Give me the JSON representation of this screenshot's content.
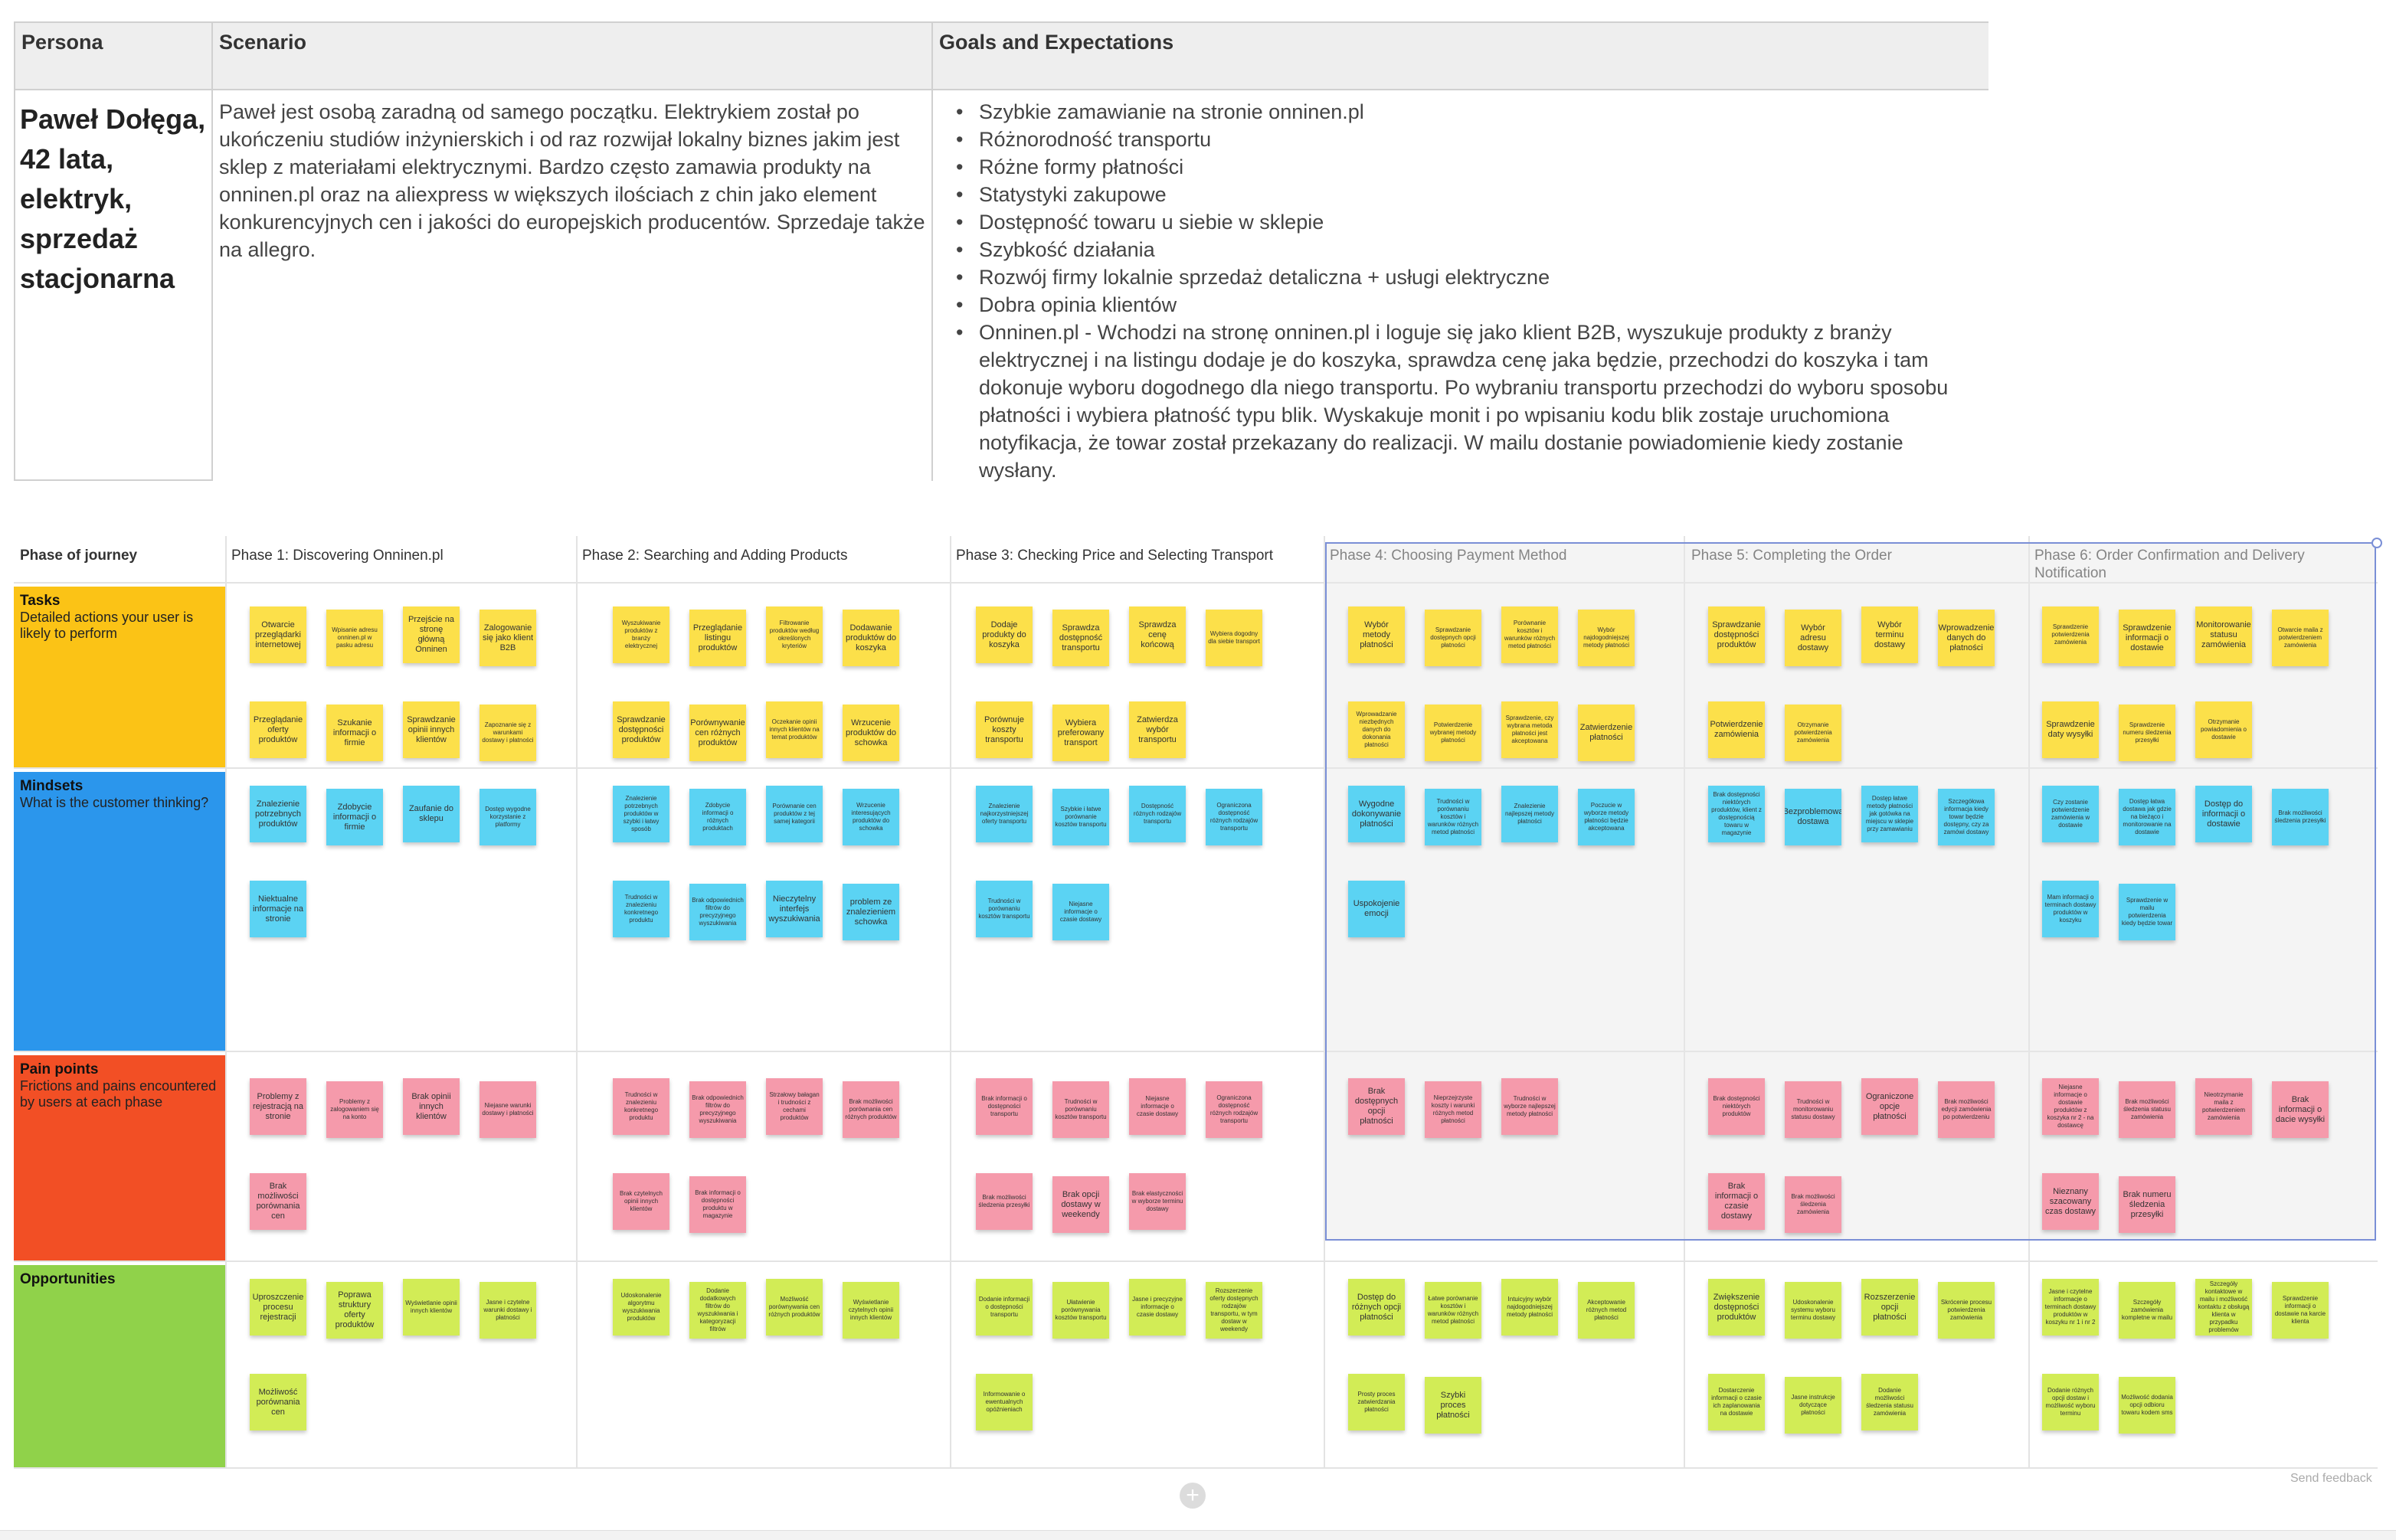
{
  "persona_table": {
    "headers": [
      "Persona",
      "Scenario",
      "Goals and Expectations"
    ],
    "persona": "Paweł Dołęga, 42 lata, elektryk, sprzedaż stacjonarna",
    "scenario": "Paweł jest osobą zaradną od samego początku. Elektrykiem został po ukończeniu studiów inżynierskich i od raz rozwijał lokalny biznes jakim jest sklep z materiałami elektrycznymi. Bardzo często zamawia produkty na onninen.pl oraz na aliexpress w większych ilościach z chin jako element konkurencyjnych cen i jakości do europejskich producentów. Sprzedaje także na allegro.",
    "goals": [
      "Szybkie zamawianie na stronie onninen.pl",
      "Różnorodność transportu",
      "Różne formy płatności",
      "Statystyki zakupowe",
      "Dostępność towaru u siebie w sklepie",
      "Szybkość działania",
      "Rozwój firmy lokalnie sprzedaż detaliczna + usługi elektryczne",
      "Dobra opinia klientów",
      "Onninen.pl - Wchodzi na stronę onninen.pl i loguje się jako klient B2B, wyszukuje produkty z branży elektrycznej i na listingu dodaje je do koszyka, sprawdza cenę jaka będzie, przechodzi do koszyka i tam dokonuje wyboru dogodnego dla niego transportu. Po wybraniu transportu przechodzi do wyboru sposobu płatności i wybiera płatność typu blik. Wyskakuje monit i po wpisaniu kodu blik zostaje uruchomiona notyfikacja, że towar został przekazany do realizacji. W mailu dostanie powiadomienie kiedy zostanie wysłany."
    ]
  },
  "journey": {
    "header_label": "Phase of journey",
    "phases": [
      "Phase 1: Discovering Onninen.pl",
      "Phase 2: Searching and Adding Products",
      "Phase 3: Checking Price and Selecting Transport",
      "Phase 4: Choosing Payment Method",
      "Phase 5: Completing the Order",
      "Phase 6: Order Confirmation and Delivery Notification"
    ],
    "rows": [
      {
        "title": "Tasks",
        "desc": "Detailed actions your user is likely to perform",
        "color": "#fbc316"
      },
      {
        "title": "Mindsets",
        "desc": "What is the customer thinking?",
        "color": "#2b96ec"
      },
      {
        "title": "Pain points",
        "desc": "Frictions and pains encountered by users at each phase",
        "color": "#f24f25"
      },
      {
        "title": "Opportunities",
        "desc": "",
        "color": "#90d24a"
      }
    ],
    "notes": {
      "tasks": [
        [
          "Otwarcie przeglądarki internetowej",
          "Wpisanie adresu onninen.pl w pasku adresu",
          "Przejście na stronę główną Onninen",
          "Zalogowanie się jako klient B2B",
          "Przeglądanie oferty produktów",
          "Szukanie informacji o firmie",
          "Sprawdzanie opinii innych klientów",
          "Zapoznanie się z warunkami dostawy i płatności"
        ],
        [
          "Wyszukiwanie produktów z branży elektrycznej",
          "Przeglądanie listingu produktów",
          "Filtrowanie produktów według określonych kryteriów",
          "Dodawanie produktów do koszyka",
          "Sprawdzanie dostępności produktów",
          "Porównywanie cen różnych produktów",
          "Oczekanie opinii innych klientów na temat produktów",
          "Wrzucenie produktów do schowka"
        ],
        [
          "Dodaje produkty do koszyka",
          "Sprawdza dostępność transportu",
          "Sprawdza cenę końcową",
          "Wybiera dogodny dla siebie transport",
          "Porównuje koszty transportu",
          "Wybiera preferowany transport",
          "Zatwierdza wybór transportu"
        ],
        [
          "Wybór metody płatności",
          "Sprawdzanie dostępnych opcji płatności",
          "Porównanie kosztów i warunków różnych metod płatności",
          "Wybór najdogodniejszej metody płatności",
          "Wprowadzanie niezbędnych danych do dokonania płatności",
          "Potwierdzenie wybranej metody płatności",
          "Sprawdzenie, czy wybrana metoda płatności jest akceptowana",
          "Zatwierdzenie płatności"
        ],
        [
          "Sprawdzanie dostępności produktów",
          "Wybór adresu dostawy",
          "Wybór terminu dostawy",
          "Wprowadzenie danych do płatności",
          "Potwierdzenie zamówienia",
          "Otrzymanie potwierdzenia zamówienia"
        ],
        [
          "Sprawdzenie potwierdzenia zamówienia",
          "Sprawdzenie informacji o dostawie",
          "Monitorowanie statusu zamówienia",
          "Otwarcie maila z potwierdzeniem zamówienia",
          "Sprawdzenie daty wysyłki",
          "Sprawdzenie numeru śledzenia przesyłki",
          "Otrzymanie powiadomienia o dostawie"
        ]
      ],
      "mindsets": [
        [
          "Znalezienie potrzebnych produktów",
          "Zdobycie informacji o firmie",
          "Zaufanie do sklepu",
          "Dostęp wygodne korzystanie z platformy",
          "Niektualne informacje na stronie"
        ],
        [
          "Znalezienie potrzebnych produktów w szybki i łatwy sposób",
          "Zdobycie informacji o różnych produktach",
          "Porównanie cen produktów z tej samej kategorii",
          "Wrzucenie interesujących produktów do schowka",
          "Trudności w znalezieniu konkretnego produktu",
          "Brak odpowiednich filtrów do precyzyjnego wyszukiwania",
          "Nieczytelny interfejs wyszukiwania",
          "problem ze znalezieniem schowka"
        ],
        [
          "Znalezienie najkorzystniejszej oferty transportu",
          "Szybkie i łatwe porównanie kosztów transportu",
          "Dostępność różnych rodzajów transportu",
          "Ograniczona dostępność różnych rodzajów transportu",
          "Trudności w porównaniu kosztów transportu",
          "Niejasne informacje o czasie dostawy"
        ],
        [
          "Wygodne dokonywanie płatności",
          "Trudności w porównaniu kosztów i warunków różnych metod płatności",
          "Znalezienie najlepszej metody płatności",
          "Poczucie w wyborze metody płatności będzie akceptowana",
          "Uspokojenie emocji"
        ],
        [
          "Brak dostępności niektórych produktów, klient z dostępnością towaru w magazynie",
          "Bezproblemowa dostawa",
          "Dostęp łatwe metody płatności jak gotówka na miejscu w sklepie przy zamawianiu",
          "Szczegółowa informacja kiedy towar będzie dostępny, czy za zamówi dostawy"
        ],
        [
          "Czy zostanie potwierdzenie zamówienia w dostawie",
          "Dostęp łatwa dostawa jak gdzie na bieżąco i monitorowanie na dostawie",
          "Dostęp do informacji o dostawie",
          "Brak możliwości śledzenia przesyłki",
          "Mam informacji o terminach dostawy produktów w koszyku",
          "Sprawdzenie w mailu potwierdzenia kiedy będzie towar"
        ]
      ],
      "pains": [
        [
          "Problemy z rejestracją na stronie",
          "Problemy z zalogowaniem się na konto",
          "Brak opinii innych klientów",
          "Niejasne warunki dostawy i płatności",
          "Brak możliwości porównania cen"
        ],
        [
          "Trudności w znalezieniu konkretnego produktu",
          "Brak odpowiednich filtrów do precyzyjnego wyszukiwania",
          "Strzałowy bałagan i trudności z cechami produktów",
          "Brak możliwości porównania cen różnych produktów",
          "Brak czytelnych opinii innych klientów",
          "Brak informacji o dostępności produktu w magazynie"
        ],
        [
          "Brak informacji o dostępności transportu",
          "Trudności w porównaniu kosztów transportu",
          "Niejasne informacje o czasie dostawy",
          "Ograniczona dostępność różnych rodzajów transportu",
          "Brak możliwości śledzenia przesyłki",
          "Brak opcji dostawy w weekendy",
          "Brak elastyczności w wyborze terminu dostawy"
        ],
        [
          "Brak dostępnych opcji płatności",
          "Nieprzejrzyste koszty i warunki różnych metod płatności",
          "Trudności w wyborze najlepszej metody płatności"
        ],
        [
          "Brak dostępności niektórych produktów",
          "Trudności w monitorowaniu statusu dostawy",
          "Ograniczone opcje płatności",
          "Brak możliwości edycji zamówienia po potwierdzeniu",
          "Brak informacji o czasie dostawy",
          "Brak możliwości śledzenia zamówienia"
        ],
        [
          "Niejasne informacje o dostawie produktów z koszyka nr 2 - na dostawcę",
          "Brak możliwości śledzenia statusu zamówienia",
          "Nieotrzymanie maila z potwierdzeniem zamówienia",
          "Brak informacji o dacie wysyłki",
          "Nieznany szacowany czas dostawy",
          "Brak numeru śledzenia przesyłki"
        ]
      ],
      "opps": [
        [
          "Uproszczenie procesu rejestracji",
          "Poprawa struktury oferty produktów",
          "Wyświetlanie opinii innych klientów",
          "Jasne i czytelne warunki dostawy i płatności",
          "Możliwość porównania cen"
        ],
        [
          "Udoskonalenie algorytmu wyszukiwania produktów",
          "Dodanie dodatkowych filtrów do wyszukiwania i kategoryzacji filtrów",
          "Możliwość porównywania cen różnych produktów",
          "Wyświetlanie czytelnych opinii innych klientów"
        ],
        [
          "Dodanie informacji o dostępności transportu",
          "Ułatwienie porównywania kosztów transportu",
          "Jasne i precyzyjne informacje o czasie dostawy",
          "Rozszerzenie oferty dostępnych rodzajów transportu, w tym dostaw w weekendy",
          "Informowanie o ewentualnych opóźnieniach"
        ],
        [
          "Dostęp do różnych opcji płatności",
          "Łatwe porównanie kosztów i warunków różnych metod płatności",
          "Intuicyjny wybór najdogodniejszej metody płatności",
          "Akceptowanie różnych metod płatności",
          "Prosty proces zatwierdzania płatności",
          "Szybki proces płatności"
        ],
        [
          "Zwiększenie dostępności produktów",
          "Udoskonalenie systemu wyboru terminu dostawy",
          "Rozszerzenie opcji płatności",
          "Skrócenie procesu potwierdzenia zamówienia",
          "Dostarczenie informacji o czasie ich zaplanowania na dostawie",
          "Jasne instrukcje dotyczące płatności",
          "Dodanie możliwości śledzenia statusu zamówienia"
        ],
        [
          "Jasne i czytelne informacje o terminach dostawy produktów w koszyku nr 1 i nr 2",
          "Szczegóły zamówienia kompletne w mailu",
          "Szczegóły kontaktowe w mailu i możliwość kontaktu z obsługą klienta w przypadku problemów",
          "Sprawdzenie informacji o dostawie na karcie klienta",
          "Dodanie różnych opcji dostaw i możliwość wyboru terminu",
          "Możliwość dodania opcji odbioru towaru kodem sms"
        ]
      ]
    },
    "add_button": "+",
    "feedback": "Send feedback"
  }
}
